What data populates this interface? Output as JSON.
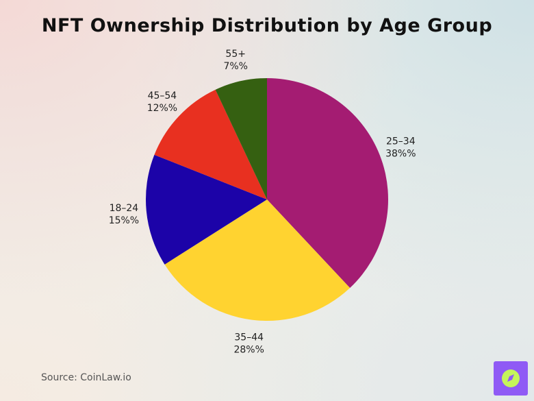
{
  "chart_data": {
    "type": "pie",
    "title": "NFT Ownership Distribution by Age Group",
    "slices": [
      {
        "label": "25–34",
        "value": 38,
        "value_label": "38%%",
        "color": "#a41c72"
      },
      {
        "label": "35–44",
        "value": 28,
        "value_label": "28%%",
        "color": "#ffd330"
      },
      {
        "label": "18–24",
        "value": 15,
        "value_label": "15%%",
        "color": "#1c03a8"
      },
      {
        "label": "45–54",
        "value": 12,
        "value_label": "12%%",
        "color": "#e83020"
      },
      {
        "label": "55+",
        "value": 7,
        "value_label": "7%%",
        "color": "#356011"
      }
    ],
    "start": "12 o'clock",
    "direction": "clockwise",
    "legend": "none"
  },
  "source": "Source: CoinLaw.io",
  "brand_badge": {
    "icon": "compass-icon",
    "background": "#8f5af5",
    "accent": "#c5f55a"
  }
}
